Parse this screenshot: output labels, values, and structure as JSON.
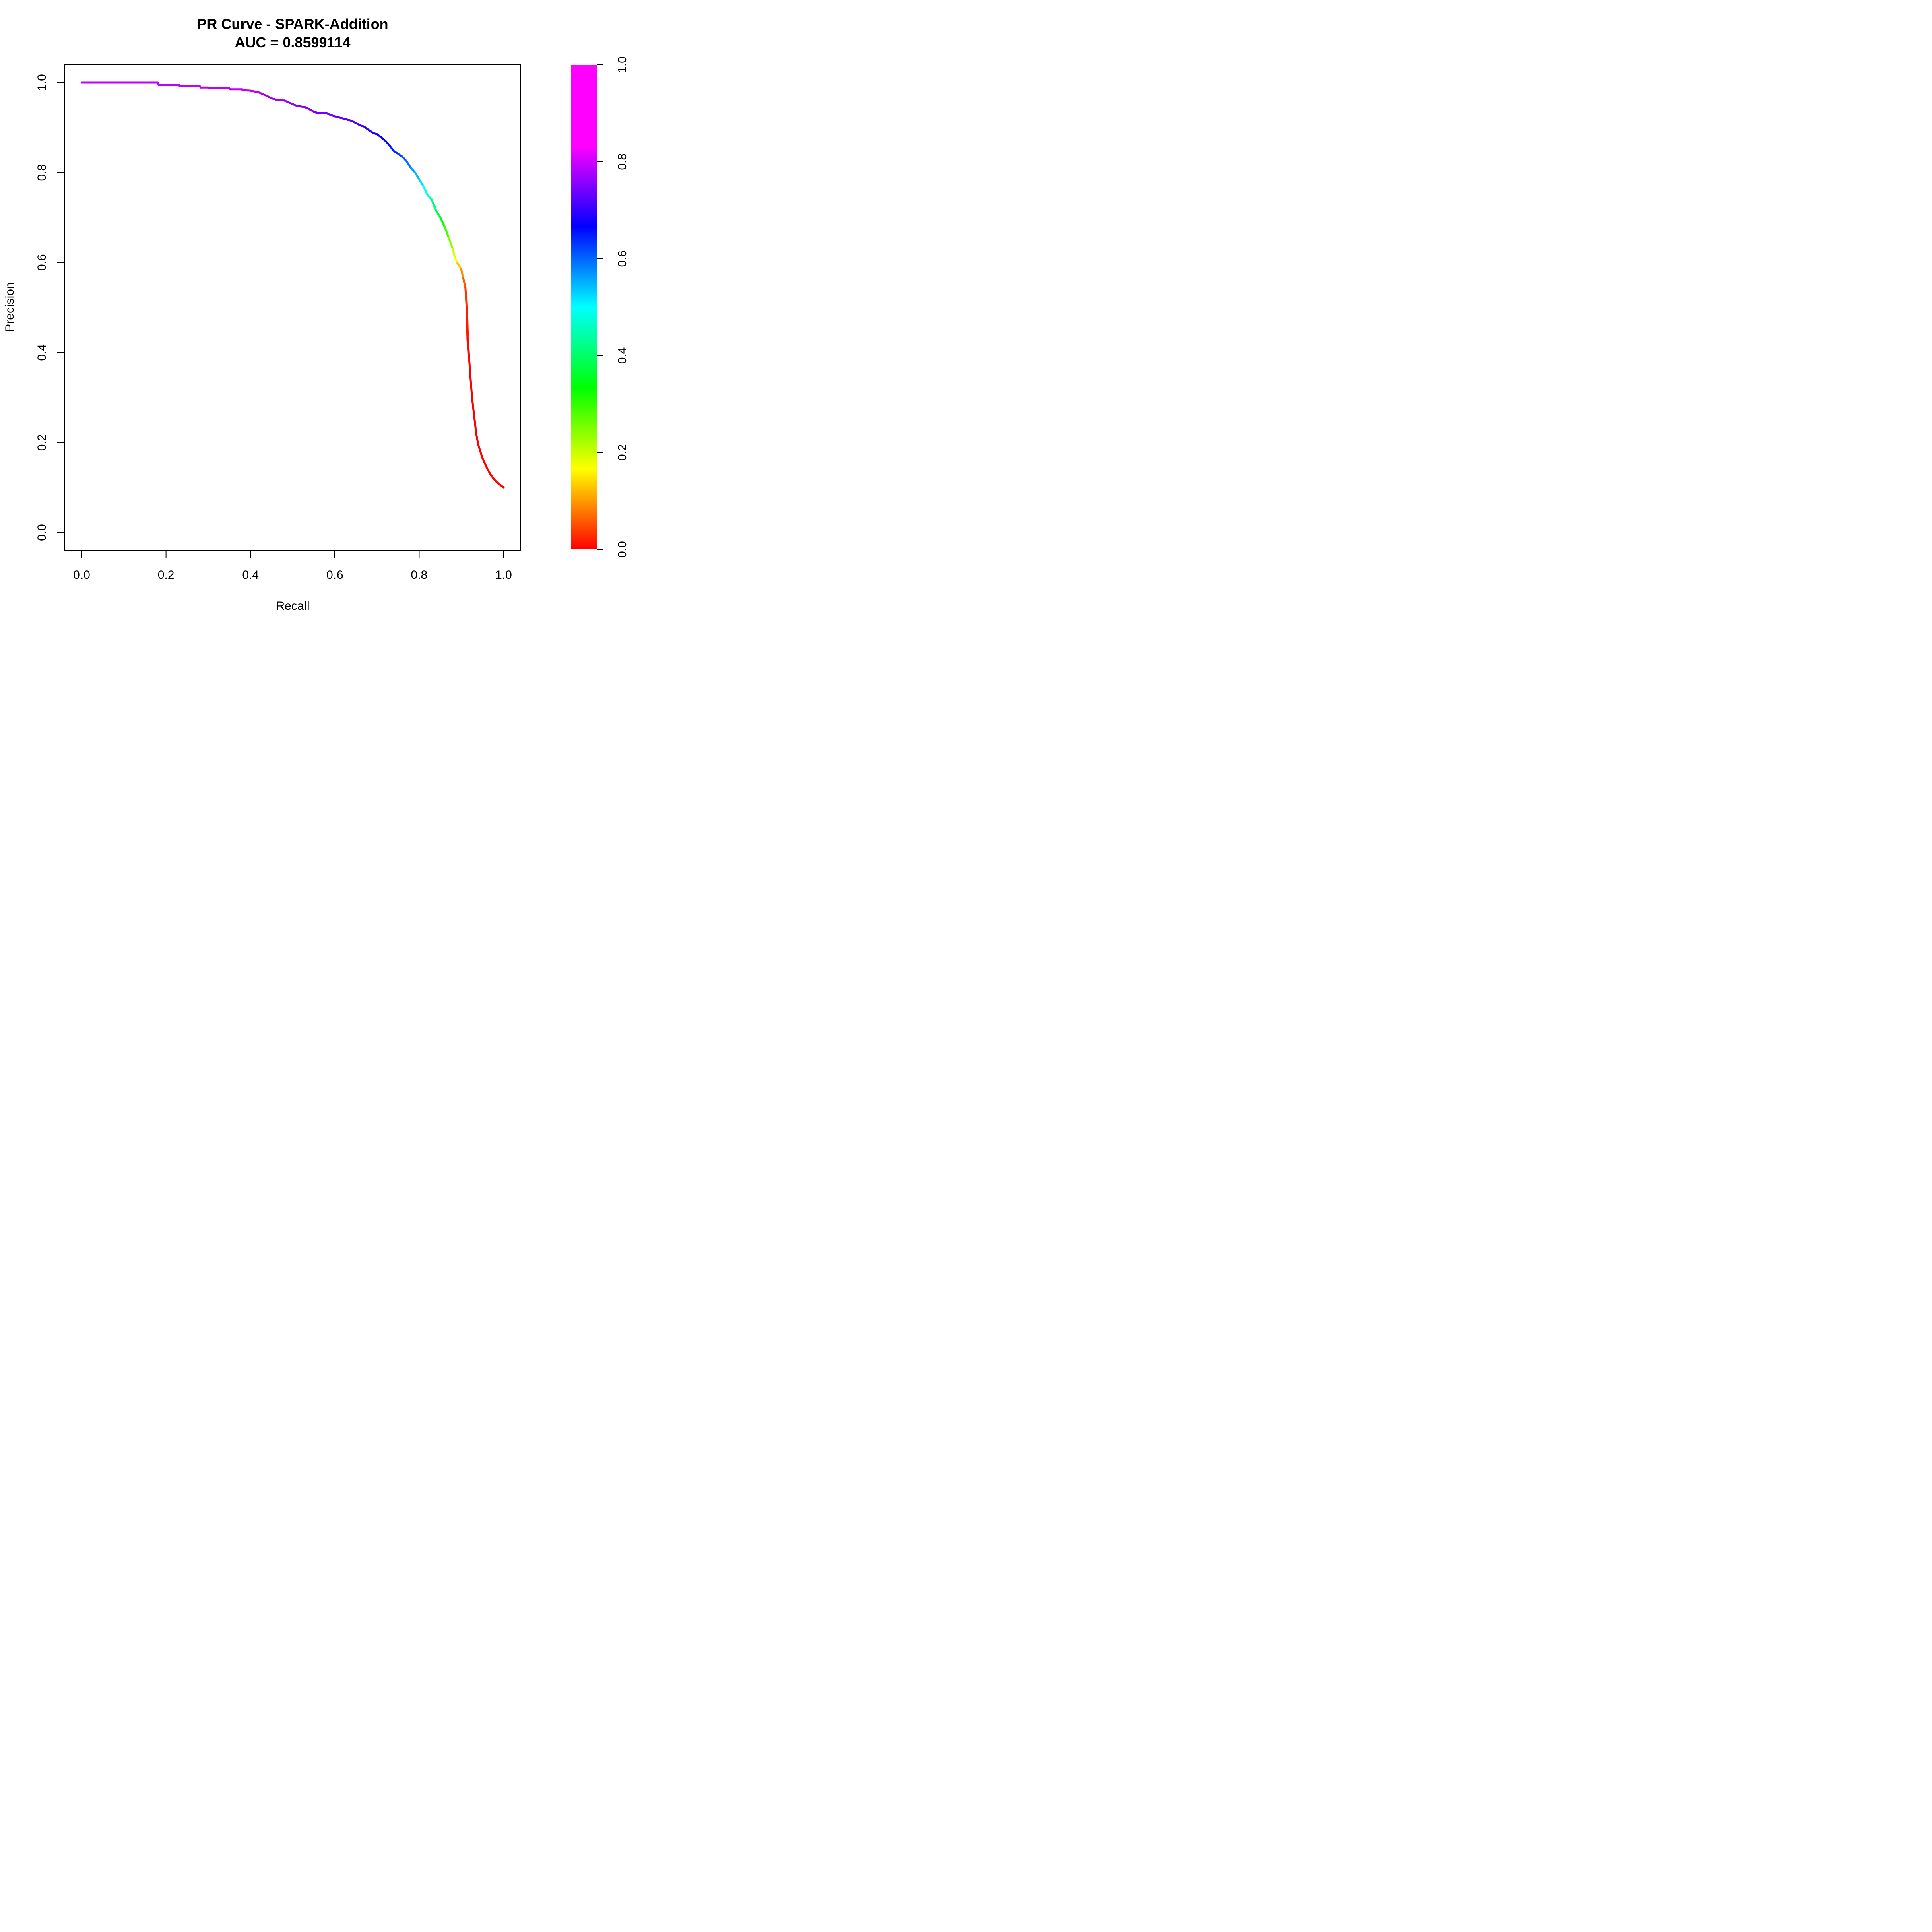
{
  "chart_data": {
    "type": "line",
    "title": "PR Curve - SPARK-Addition",
    "subtitle": "AUC = 0.8599114",
    "xlabel": "Recall",
    "ylabel": "Precision",
    "xlim": [
      0.0,
      1.0
    ],
    "ylim": [
      0.0,
      1.0
    ],
    "x_ticks": [
      "0.0",
      "0.2",
      "0.4",
      "0.6",
      "0.8",
      "1.0"
    ],
    "y_ticks": [
      "0.0",
      "0.2",
      "0.4",
      "0.6",
      "0.8",
      "1.0"
    ],
    "grid": false,
    "legend": "none",
    "colorbar": {
      "range": [
        0.0,
        1.0
      ],
      "ticks": [
        "0.0",
        "0.2",
        "0.4",
        "0.6",
        "0.8",
        "1.0"
      ],
      "placement": "right",
      "palette": "rainbow red→yellow→green→cyan→blue→magenta"
    },
    "series": [
      {
        "x": [
          0.0,
          0.18,
          0.182,
          0.23,
          0.232,
          0.28,
          0.282,
          0.3,
          0.302,
          0.35,
          0.352,
          0.38,
          0.382,
          0.4,
          0.42,
          0.44,
          0.45,
          0.46,
          0.48,
          0.5,
          0.51,
          0.53,
          0.55,
          0.56,
          0.58,
          0.6,
          0.62,
          0.64,
          0.65,
          0.66,
          0.67,
          0.68,
          0.69,
          0.7,
          0.71,
          0.72,
          0.73,
          0.74,
          0.75,
          0.76,
          0.77,
          0.78,
          0.79,
          0.8,
          0.81,
          0.82,
          0.83,
          0.84,
          0.85,
          0.86,
          0.87,
          0.88,
          0.885,
          0.89,
          0.9,
          0.905,
          0.91,
          0.913,
          0.915,
          0.92,
          0.925,
          0.93,
          0.935,
          0.94,
          0.95,
          0.96,
          0.97,
          0.98,
          0.99,
          1.0
        ],
        "y": [
          1.0,
          1.0,
          0.995,
          0.995,
          0.992,
          0.992,
          0.989,
          0.989,
          0.987,
          0.987,
          0.985,
          0.985,
          0.983,
          0.982,
          0.978,
          0.97,
          0.965,
          0.962,
          0.96,
          0.952,
          0.948,
          0.945,
          0.935,
          0.932,
          0.932,
          0.925,
          0.92,
          0.915,
          0.91,
          0.905,
          0.902,
          0.895,
          0.888,
          0.885,
          0.878,
          0.87,
          0.86,
          0.848,
          0.842,
          0.835,
          0.825,
          0.81,
          0.8,
          0.785,
          0.77,
          0.75,
          0.74,
          0.715,
          0.7,
          0.68,
          0.655,
          0.63,
          0.61,
          0.6,
          0.585,
          0.565,
          0.545,
          0.5,
          0.43,
          0.36,
          0.3,
          0.26,
          0.22,
          0.195,
          0.165,
          0.145,
          0.128,
          0.116,
          0.107,
          0.1
        ],
        "color_values": [
          0.95,
          0.95,
          0.95,
          0.95,
          0.95,
          0.95,
          0.95,
          0.95,
          0.95,
          0.95,
          0.95,
          0.95,
          0.95,
          0.95,
          0.94,
          0.93,
          0.93,
          0.92,
          0.92,
          0.91,
          0.91,
          0.9,
          0.9,
          0.89,
          0.89,
          0.88,
          0.87,
          0.87,
          0.86,
          0.86,
          0.85,
          0.84,
          0.83,
          0.82,
          0.81,
          0.8,
          0.79,
          0.77,
          0.76,
          0.74,
          0.72,
          0.7,
          0.67,
          0.64,
          0.61,
          0.57,
          0.52,
          0.48,
          0.43,
          0.38,
          0.32,
          0.26,
          0.22,
          0.18,
          0.13,
          0.09,
          0.05,
          0.03,
          0.01,
          0.0,
          0.0,
          0.0,
          0.0,
          0.0,
          0.0,
          0.0,
          0.0,
          0.0,
          0.0,
          0.0
        ]
      }
    ]
  }
}
